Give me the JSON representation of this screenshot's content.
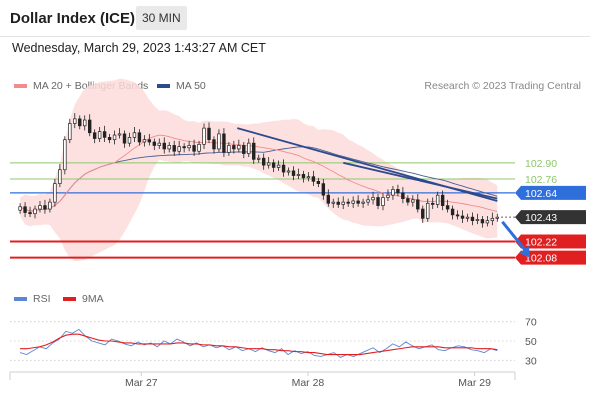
{
  "header": {
    "title": "Dollar Index (ICE)",
    "interval": "30 MIN",
    "timestamp": "Wednesday, March 29, 2023 1:43:27 AM CET"
  },
  "legend": {
    "ma20": "MA 20 + Bollinger Bands",
    "ma50": "MA 50",
    "credit": "Research © 2023 Trading Central",
    "rsi": "RSI",
    "rsi_ma": "9MA"
  },
  "colors": {
    "candle": "#222222",
    "band_fill": "#fddcdc",
    "ma20": "#f28c8c",
    "ma50": "#4a5f8f",
    "trendline": "#2e4a8f",
    "resistance": "#8dc86a",
    "pivot": "#2f6fdc",
    "support": "#e02020",
    "current": "#333333",
    "rsi": "#5c85d6",
    "rsi_ma": "#e02020"
  },
  "chart_data": [
    {
      "type": "candlestick",
      "title": "Dollar Index (ICE)",
      "ylim": [
        101.8,
        103.4
      ],
      "xlim": [
        0,
        100
      ],
      "x_ticks": [
        {
          "x": 26,
          "label": "Mar 27"
        },
        {
          "x": 59,
          "label": "Mar 28"
        },
        {
          "x": 92,
          "label": "Mar 29"
        }
      ],
      "grid": false,
      "legend_position": "top-left",
      "closes": [
        102.52,
        102.47,
        102.46,
        102.5,
        102.53,
        102.5,
        102.56,
        102.72,
        102.84,
        103.1,
        103.24,
        103.28,
        103.22,
        103.27,
        103.16,
        103.11,
        103.17,
        103.12,
        103.1,
        103.14,
        103.15,
        103.07,
        103.12,
        103.16,
        103.08,
        103.1,
        103.08,
        103.05,
        103.07,
        103.02,
        103.05,
        103.0,
        103.04,
        103.03,
        103.05,
        103.0,
        103.06,
        103.2,
        103.1,
        103.02,
        103.15,
        102.99,
        103.05,
        103.02,
        103.05,
        102.98,
        103.07,
        102.93,
        102.94,
        102.88,
        102.9,
        102.86,
        102.88,
        102.82,
        102.83,
        102.79,
        102.8,
        102.77,
        102.78,
        102.74,
        102.72,
        102.62,
        102.55,
        102.56,
        102.54,
        102.56,
        102.55,
        102.57,
        102.55,
        102.56,
        102.58,
        102.6,
        102.53,
        102.6,
        102.62,
        102.67,
        102.64,
        102.59,
        102.56,
        102.58,
        102.5,
        102.42,
        102.55,
        102.54,
        102.62,
        102.53,
        102.5,
        102.45,
        102.44,
        102.42,
        102.43,
        102.4,
        102.41,
        102.38,
        102.4,
        102.42,
        102.43
      ],
      "horizontal_levels": [
        {
          "value": 102.9,
          "label": "102.90",
          "kind": "resistance"
        },
        {
          "value": 102.76,
          "label": "102.76",
          "kind": "resistance"
        },
        {
          "value": 102.64,
          "label": "102.64",
          "kind": "pivot"
        },
        {
          "value": 102.43,
          "label": "102.43",
          "kind": "current"
        },
        {
          "value": 102.22,
          "label": "102.22",
          "kind": "support"
        },
        {
          "value": 102.08,
          "label": "102.08",
          "kind": "support"
        }
      ],
      "trendlines": [
        {
          "from": [
            45,
            103.2
          ],
          "to": [
            96.5,
            102.57
          ]
        },
        {
          "from": [
            66,
            102.9
          ],
          "to": [
            96.5,
            102.59
          ]
        }
      ],
      "projection_arrow": {
        "from": [
          97.5,
          102.39
        ],
        "to": [
          103,
          102.08
        ]
      }
    },
    {
      "type": "line",
      "title": "RSI",
      "ylim": [
        20,
        80
      ],
      "y_ticks": [
        70,
        50,
        30
      ],
      "series": [
        {
          "name": "RSI",
          "values": [
            38,
            36,
            40,
            44,
            42,
            48,
            52,
            60,
            58,
            62,
            55,
            50,
            48,
            46,
            52,
            50,
            47,
            45,
            49,
            46,
            48,
            44,
            50,
            47,
            52,
            49,
            45,
            48,
            44,
            46,
            43,
            45,
            41,
            44,
            40,
            42,
            39,
            43,
            40,
            38,
            42,
            36,
            40,
            37,
            39,
            35,
            34,
            36,
            38,
            33,
            36,
            34,
            37,
            40,
            43,
            38,
            42,
            47,
            44,
            49,
            45,
            42,
            44,
            46,
            41,
            40,
            43,
            45,
            44,
            41,
            40,
            38,
            42,
            40
          ]
        },
        {
          "name": "9MA",
          "values": [
            42,
            42,
            43,
            44,
            46,
            49,
            53,
            56,
            57,
            57,
            55,
            53,
            51,
            50,
            50,
            49,
            48,
            48,
            47,
            47,
            47,
            47,
            47,
            47,
            48,
            48,
            47,
            47,
            46,
            46,
            45,
            45,
            44,
            44,
            43,
            42,
            42,
            42,
            41,
            41,
            40,
            40,
            39,
            39,
            38,
            38,
            37,
            36,
            36,
            36,
            36,
            36,
            36,
            37,
            38,
            39,
            40,
            41,
            42,
            43,
            44,
            44,
            44,
            44,
            44,
            43,
            43,
            43,
            43,
            43,
            42,
            42,
            42,
            41
          ]
        }
      ]
    }
  ]
}
